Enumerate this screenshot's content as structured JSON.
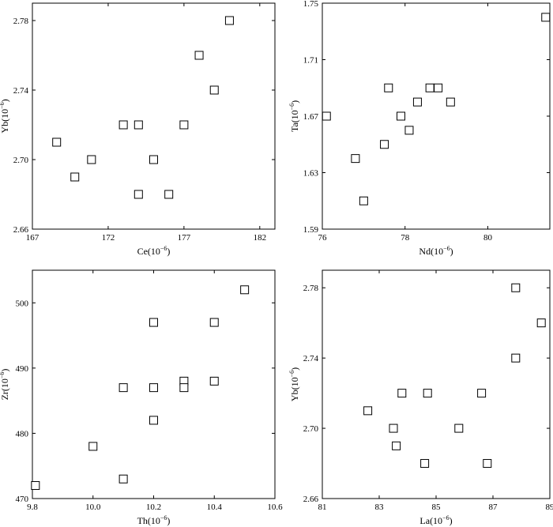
{
  "chart_data": [
    {
      "type": "scatter",
      "xlabel": "Ce",
      "ylabel": "Yb",
      "unit_base": "(10",
      "unit_exp": "−6",
      "unit_close": ")",
      "xlim": [
        167,
        183
      ],
      "ylim": [
        2.66,
        2.79
      ],
      "xticks": [
        167,
        172,
        177,
        182
      ],
      "xtick_labels": [
        "167",
        "172",
        "177",
        "182"
      ],
      "yticks": [
        2.66,
        2.7,
        2.74,
        2.78
      ],
      "ytick_labels": [
        "2.66",
        "2.70",
        "2.74",
        "2.78"
      ],
      "points": [
        {
          "x": 168.6,
          "y": 2.71
        },
        {
          "x": 169.8,
          "y": 2.69
        },
        {
          "x": 170.9,
          "y": 2.7
        },
        {
          "x": 173.0,
          "y": 2.72
        },
        {
          "x": 174.0,
          "y": 2.72
        },
        {
          "x": 174.0,
          "y": 2.68
        },
        {
          "x": 175.0,
          "y": 2.7
        },
        {
          "x": 176.0,
          "y": 2.68
        },
        {
          "x": 177.0,
          "y": 2.72
        },
        {
          "x": 178.0,
          "y": 2.76
        },
        {
          "x": 179.0,
          "y": 2.74
        },
        {
          "x": 180.0,
          "y": 2.78
        }
      ]
    },
    {
      "type": "scatter",
      "xlabel": "Nd",
      "ylabel": "Ta",
      "unit_base": "(10",
      "unit_exp": "−6",
      "unit_close": ")",
      "xlim": [
        76,
        81.5
      ],
      "ylim": [
        1.59,
        1.75
      ],
      "xticks": [
        76,
        78,
        80
      ],
      "xtick_labels": [
        "76",
        "78",
        "80"
      ],
      "yticks": [
        1.59,
        1.63,
        1.67,
        1.71,
        1.75
      ],
      "ytick_labels": [
        "1.59",
        "1.63",
        "1.67",
        "1.71",
        "1.75"
      ],
      "points": [
        {
          "x": 76.1,
          "y": 1.67
        },
        {
          "x": 76.8,
          "y": 1.64
        },
        {
          "x": 77.0,
          "y": 1.61
        },
        {
          "x": 77.5,
          "y": 1.65
        },
        {
          "x": 77.6,
          "y": 1.69
        },
        {
          "x": 77.9,
          "y": 1.67
        },
        {
          "x": 78.1,
          "y": 1.66
        },
        {
          "x": 78.3,
          "y": 1.68
        },
        {
          "x": 78.6,
          "y": 1.69
        },
        {
          "x": 78.8,
          "y": 1.69
        },
        {
          "x": 79.1,
          "y": 1.68
        },
        {
          "x": 81.4,
          "y": 1.74
        }
      ]
    },
    {
      "type": "scatter",
      "xlabel": "Th",
      "ylabel": "Zr",
      "unit_base": "(10",
      "unit_exp": "−6",
      "unit_close": ")",
      "xlim": [
        9.8,
        10.6
      ],
      "ylim": [
        470,
        505
      ],
      "xticks": [
        9.8,
        10.0,
        10.2,
        10.4,
        10.6
      ],
      "xtick_labels": [
        "9.8",
        "10.0",
        "10.2",
        "10.4",
        "10.6"
      ],
      "yticks": [
        470,
        480,
        490,
        500
      ],
      "ytick_labels": [
        "470",
        "480",
        "490",
        "500"
      ],
      "points": [
        {
          "x": 9.81,
          "y": 472
        },
        {
          "x": 10.0,
          "y": 478
        },
        {
          "x": 10.1,
          "y": 487
        },
        {
          "x": 10.1,
          "y": 473
        },
        {
          "x": 10.2,
          "y": 497
        },
        {
          "x": 10.2,
          "y": 487
        },
        {
          "x": 10.2,
          "y": 482
        },
        {
          "x": 10.3,
          "y": 488
        },
        {
          "x": 10.3,
          "y": 487
        },
        {
          "x": 10.4,
          "y": 497
        },
        {
          "x": 10.4,
          "y": 488
        },
        {
          "x": 10.5,
          "y": 502
        }
      ]
    },
    {
      "type": "scatter",
      "xlabel": "La",
      "ylabel": "Yb",
      "unit_base": "(10",
      "unit_exp": "−6",
      "unit_close": ")",
      "xlim": [
        81,
        89
      ],
      "ylim": [
        2.66,
        2.79
      ],
      "xticks": [
        81,
        83,
        85,
        87,
        89
      ],
      "xtick_labels": [
        "81",
        "83",
        "85",
        "87",
        "89"
      ],
      "yticks": [
        2.66,
        2.7,
        2.74,
        2.78
      ],
      "ytick_labels": [
        "2.66",
        "2.70",
        "2.74",
        "2.78"
      ],
      "points": [
        {
          "x": 82.6,
          "y": 2.71
        },
        {
          "x": 83.5,
          "y": 2.7
        },
        {
          "x": 83.6,
          "y": 2.69
        },
        {
          "x": 83.8,
          "y": 2.72
        },
        {
          "x": 84.6,
          "y": 2.68
        },
        {
          "x": 84.7,
          "y": 2.72
        },
        {
          "x": 85.8,
          "y": 2.7
        },
        {
          "x": 86.6,
          "y": 2.72
        },
        {
          "x": 86.8,
          "y": 2.68
        },
        {
          "x": 87.8,
          "y": 2.78
        },
        {
          "x": 87.8,
          "y": 2.74
        },
        {
          "x": 88.7,
          "y": 2.76
        }
      ]
    }
  ]
}
